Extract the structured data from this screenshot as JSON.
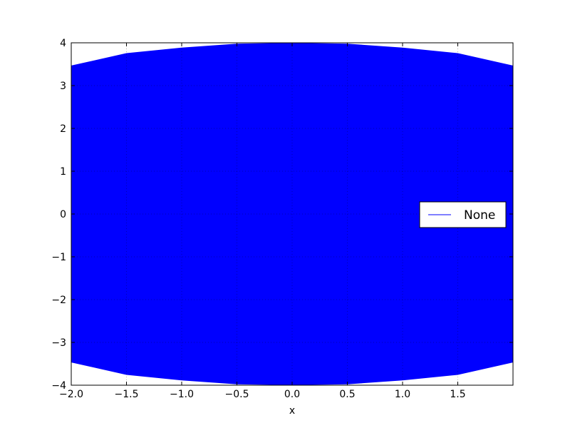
{
  "chart_data": {
    "type": "line",
    "title": "",
    "xlabel": "x",
    "ylabel": "",
    "xlim": [
      -2.0,
      2.0
    ],
    "ylim": [
      -4,
      4
    ],
    "x_ticks": [
      -2.0,
      -1.5,
      -1.0,
      -0.5,
      0.0,
      0.5,
      1.0,
      1.5
    ],
    "x_tick_labels": [
      "−2.0",
      "−1.5",
      "−1.0",
      "−0.5",
      "0.0",
      "0.5",
      "1.0",
      "1.5"
    ],
    "y_ticks": [
      -4,
      -3,
      -2,
      -1,
      0,
      1,
      2,
      3,
      4
    ],
    "y_tick_labels": [
      "−4",
      "−3",
      "−2",
      "−1",
      "0",
      "1",
      "2",
      "3",
      "4"
    ],
    "grid": true,
    "legend": {
      "position": "center-right",
      "entries": [
        "None"
      ]
    },
    "series": [
      {
        "name": "None",
        "color": "#0000ff",
        "envelope": {
          "x": [
            -2.0,
            -1.5,
            -1.0,
            -0.5,
            0.0,
            0.5,
            1.0,
            1.5,
            2.0
          ],
          "upper": [
            3.46,
            3.75,
            3.88,
            3.97,
            3.99,
            3.97,
            3.88,
            3.75,
            3.46
          ],
          "lower": [
            -3.46,
            -3.75,
            -3.88,
            -3.97,
            -3.99,
            -3.97,
            -3.88,
            -3.75,
            -3.46
          ]
        }
      }
    ]
  }
}
